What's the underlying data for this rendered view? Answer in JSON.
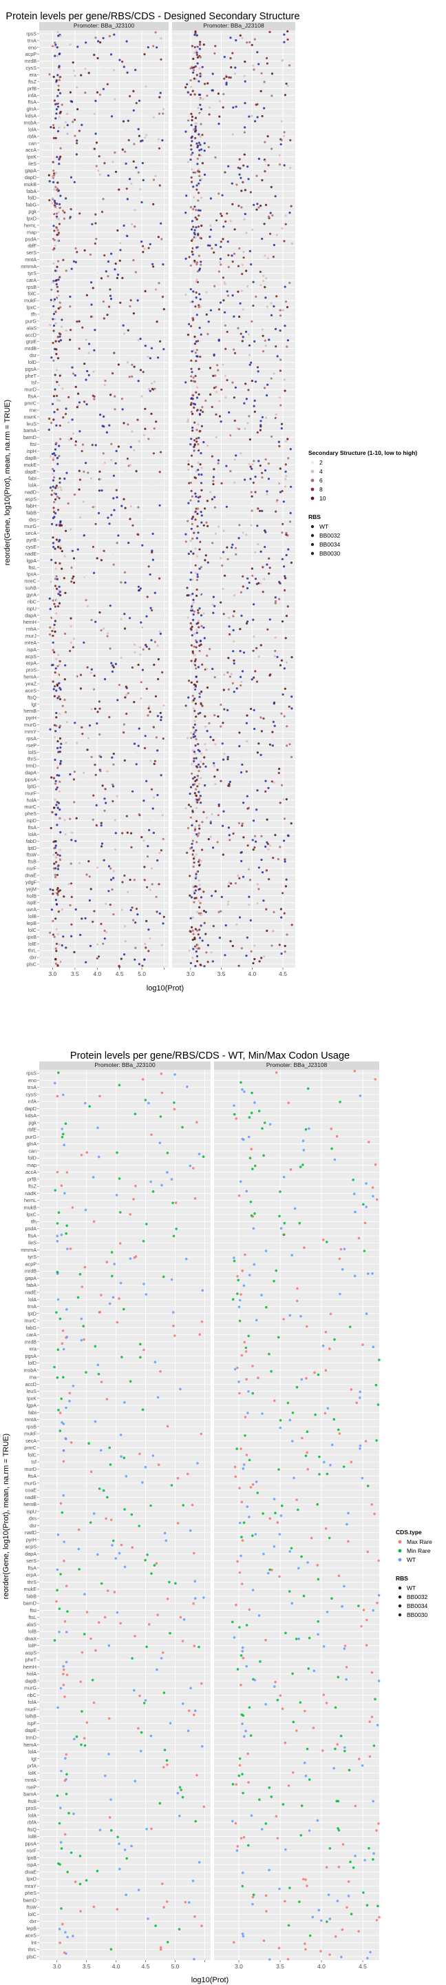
{
  "chart_data": [
    {
      "type": "scatter",
      "title": "Protein levels per gene/RBS/CDS - Designed Secondary Structure",
      "xlabel": "log10(Prot)",
      "ylabel": "reorder(Gene, log10(Prot), mean, na.rm = TRUE)",
      "panels": [
        {
          "label": "Promoter: BBa_J23100",
          "xlim": [
            2.7,
            5.6
          ],
          "ticks": [
            3.0,
            3.5,
            4.0,
            4.5,
            5.0,
            5.5
          ],
          "tick_labels": [
            "3.0",
            "3.5",
            "4.0",
            "4.5",
            "5.0",
            ""
          ]
        },
        {
          "label": "Promoter: BBa_J23108",
          "xlim": [
            2.7,
            4.7
          ],
          "ticks": [
            3.0,
            3.5,
            4.0,
            4.5
          ],
          "tick_labels": [
            "3.0",
            "3.5",
            "4.0",
            "4.5"
          ]
        }
      ],
      "genes": [
        "rpsS",
        "trnA",
        "eno",
        "acpP",
        "mrdB",
        "cysS",
        "era",
        "ftsZ",
        "prfB",
        "infA",
        "ftsA",
        "glnA",
        "kdsA",
        "msbA",
        "lolA",
        "rbfA",
        "can",
        "accA",
        "lpxK",
        "ileS",
        "gapA",
        "dapD",
        "mukB",
        "fabA",
        "folD",
        "fabG",
        "pgk",
        "lpxD",
        "hemL",
        "map",
        "psdA",
        "rbfF",
        "serS",
        "mntA",
        "mmmA",
        "tyrS",
        "carA",
        "rpsB",
        "folC",
        "mukF",
        "lpxC",
        "tfh",
        "purG",
        "alaS",
        "accD",
        "grpE",
        "mrdB",
        "dsr",
        "lolD",
        "pgsA",
        "pheT",
        "tsf",
        "murD",
        "ftsA",
        "pmrC",
        "rne",
        "mwrK",
        "leuS",
        "bamA",
        "bamD",
        "ftsI",
        "ispH",
        "dapB",
        "mukE",
        "dapE",
        "fabI",
        "lolA",
        "nadD",
        "aspS",
        "fabH",
        "fabB",
        "dxs",
        "murG",
        "secA",
        "pyrB",
        "cysE",
        "nadE",
        "lgpA",
        "ftsL",
        "lpxA",
        "mreC",
        "suhB",
        "gyrA",
        "ribC",
        "ispU",
        "dapA",
        "hemH",
        "rnhA",
        "murJ",
        "mreA",
        "ispA",
        "acpS",
        "erpA",
        "proS",
        "hemA",
        "yeaZ",
        "aceS",
        "ftsQ",
        "lgt",
        "hemB",
        "pyrH",
        "murG",
        "rnmY",
        "rpsA",
        "rseP",
        "lolS",
        "thrS",
        "trmD",
        "dapA",
        "ppsA",
        "lptG",
        "murF",
        "holA",
        "murC",
        "pheS",
        "ispD",
        "ftsA",
        "lolA",
        "fabD",
        "lptD",
        "ftsW",
        "ftsB",
        "nsrF",
        "dnaE",
        "ydgF",
        "yejM",
        "holB",
        "ispE",
        "uvrA",
        "lolB",
        "lepB",
        "lolC",
        "ipxB",
        "lolE",
        "thrL",
        "dxr",
        "plsC"
      ],
      "color_legend": {
        "title": "Secondary Structure (1-10, low to high)",
        "labels": [
          "2",
          "4",
          "6",
          "8",
          "10"
        ],
        "colors": [
          "#f2e8e8",
          "#dcbcbc",
          "#b06a6a",
          "#7f2d2d",
          "#5a1414"
        ]
      },
      "rbs_legend": {
        "title": "RBS",
        "labels": [
          "WT",
          "BB0032",
          "BB0034",
          "BB0030"
        ]
      },
      "wt_color": "#2a2a9a",
      "note": "Dense jittered scatter: each gene row shows ~8-14 points per panel; values spread 2.9-5.5 (J23100) and 2.9-4.7 (J23108) with a dense cluster near 3.0-3.1."
    },
    {
      "type": "scatter",
      "title": "Protein levels per gene/RBS/CDS - WT, Min/Max Codon Usage",
      "xlabel": "log10(Prot)",
      "ylabel": "reorder(Gene, log10(Prot), mean, na.rm = TRUE)",
      "panels": [
        {
          "label": "Promoter: BBa_J23100",
          "xlim": [
            2.7,
            5.6
          ],
          "ticks": [
            3.0,
            3.5,
            4.0,
            4.5,
            5.0,
            5.5
          ],
          "tick_labels": [
            "3.0",
            "3.5",
            "4.0",
            "4.5",
            "5.0",
            ""
          ]
        },
        {
          "label": "Promoter: BBa_J23108",
          "xlim": [
            2.7,
            4.7
          ],
          "ticks": [
            3.0,
            3.5,
            4.0,
            4.5
          ],
          "tick_labels": [
            "3.0",
            "3.5",
            "4.0",
            "4.5"
          ]
        }
      ],
      "genes": [
        "rpsS",
        "eno",
        "trnA",
        "cysS",
        "infA",
        "dapD",
        "kdsA",
        "pgk",
        "rbfE",
        "purG",
        "glnA",
        "can",
        "folD",
        "map",
        "accA",
        "prfB",
        "ftsZ",
        "nadK",
        "hemL",
        "mukB",
        "lpxC",
        "tfh",
        "psdA",
        "ftsA",
        "ileS",
        "mmmA",
        "tyrS",
        "acpP",
        "mrdB",
        "gapA",
        "fabA",
        "nadE",
        "lolA",
        "trnA",
        "lptD",
        "murC",
        "fabG",
        "carA",
        "mrdB",
        "era",
        "pgsA",
        "lolD",
        "msbA",
        "rna",
        "accD",
        "leuS",
        "lpxK",
        "lgpA",
        "fabI",
        "mntA",
        "rpsB",
        "mukF",
        "secA",
        "pmrC",
        "folC",
        "tsf",
        "murD",
        "ftsA",
        "murG",
        "coaE",
        "nadE",
        "hemB",
        "ispU",
        "dxs",
        "dsr",
        "nadD",
        "pyrH",
        "acpS",
        "dapA",
        "serS",
        "ftsA",
        "erpA",
        "thrS",
        "mukE",
        "fabB",
        "bamD",
        "ftsI",
        "ftsL",
        "alaS",
        "lolB",
        "dnaX",
        "lolP",
        "aspS",
        "pheT",
        "hemH",
        "holA",
        "dapB",
        "murG",
        "ribC",
        "folA",
        "murF",
        "lolhB",
        "ispF",
        "dapE",
        "trmD",
        "hemA",
        "lolA",
        "lgt",
        "prfA",
        "lolK",
        "mntA",
        "rseP",
        "bamA",
        "ftsB",
        "proS",
        "lolA",
        "rbfA",
        "ftsQ",
        "lolB",
        "ppsA",
        "nsrF",
        "lpxB",
        "ispA",
        "dnaE",
        "lpxD",
        "mraY",
        "pheS",
        "bamD",
        "ftsW",
        "lolC",
        "dxr",
        "lepB",
        "aceS",
        "lnt",
        "thrL",
        "plsC"
      ],
      "cds_legend": {
        "title": "CDS.type",
        "labels": [
          "Max Rare",
          "Min Rare",
          "WT"
        ],
        "colors": [
          "#f8766d",
          "#00ba38",
          "#619cff"
        ]
      },
      "rbs_legend": {
        "title": "RBS",
        "labels": [
          "WT",
          "BB0032",
          "BB0034",
          "BB0030"
        ]
      },
      "note": "Sparse jittered scatter: ~3-5 points per gene row per panel; points spread 2.9-5.5 (J23100) and 2.9-4.7 (J23108)."
    }
  ]
}
